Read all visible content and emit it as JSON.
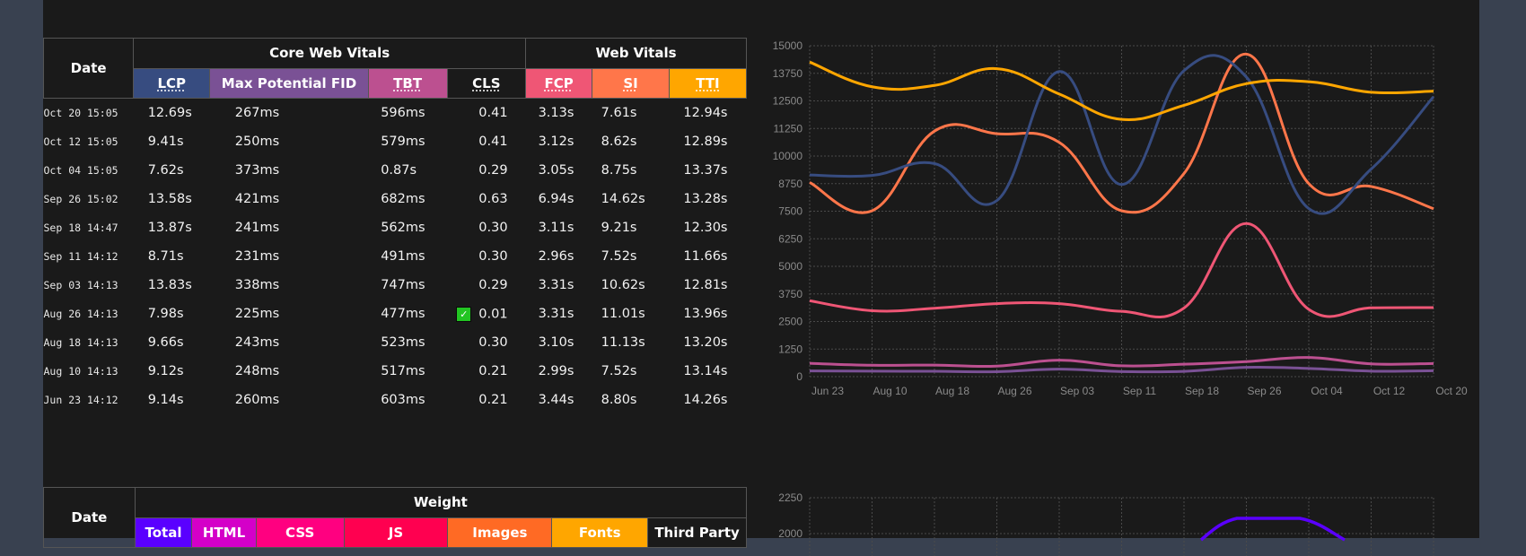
{
  "vitals_table": {
    "date_header": "Date",
    "group_headers": [
      {
        "label": "Core Web Vitals"
      },
      {
        "label": "Web Vitals"
      }
    ],
    "columns": [
      {
        "label": "LCP",
        "color": "#374c80"
      },
      {
        "label": "Max Potential FID",
        "color": "#7a5195"
      },
      {
        "label": "TBT",
        "color": "#bc5090"
      },
      {
        "label": "CLS",
        "color": "#1a1a1a"
      },
      {
        "label": "FCP",
        "color": "#ef5675"
      },
      {
        "label": "SI",
        "color": "#ff764a"
      },
      {
        "label": "TTI",
        "color": "#ffa600"
      }
    ],
    "rows": [
      {
        "date": "Oct 20 15:05",
        "lcp": "12.69s",
        "fid": "267ms",
        "tbt": "596ms",
        "cls": "0.41",
        "cls_good": false,
        "fcp": "3.13s",
        "si": "7.61s",
        "tti": "12.94s"
      },
      {
        "date": "Oct 12 15:05",
        "lcp": "9.41s",
        "fid": "250ms",
        "tbt": "579ms",
        "cls": "0.41",
        "cls_good": false,
        "fcp": "3.12s",
        "si": "8.62s",
        "tti": "12.89s"
      },
      {
        "date": "Oct 04 15:05",
        "lcp": "7.62s",
        "fid": "373ms",
        "tbt": "0.87s",
        "cls": "0.29",
        "cls_good": false,
        "fcp": "3.05s",
        "si": "8.75s",
        "tti": "13.37s"
      },
      {
        "date": "Sep 26 15:02",
        "lcp": "13.58s",
        "fid": "421ms",
        "tbt": "682ms",
        "cls": "0.63",
        "cls_good": false,
        "fcp": "6.94s",
        "si": "14.62s",
        "tti": "13.28s"
      },
      {
        "date": "Sep 18 14:47",
        "lcp": "13.87s",
        "fid": "241ms",
        "tbt": "562ms",
        "cls": "0.30",
        "cls_good": false,
        "fcp": "3.11s",
        "si": "9.21s",
        "tti": "12.30s"
      },
      {
        "date": "Sep 11 14:12",
        "lcp": "8.71s",
        "fid": "231ms",
        "tbt": "491ms",
        "cls": "0.30",
        "cls_good": false,
        "fcp": "2.96s",
        "si": "7.52s",
        "tti": "11.66s"
      },
      {
        "date": "Sep 03 14:13",
        "lcp": "13.83s",
        "fid": "338ms",
        "tbt": "747ms",
        "cls": "0.29",
        "cls_good": false,
        "fcp": "3.31s",
        "si": "10.62s",
        "tti": "12.81s"
      },
      {
        "date": "Aug 26 14:13",
        "lcp": "7.98s",
        "fid": "225ms",
        "tbt": "477ms",
        "cls": "0.01",
        "cls_good": true,
        "fcp": "3.31s",
        "si": "11.01s",
        "tti": "13.96s"
      },
      {
        "date": "Aug 18 14:13",
        "lcp": "9.66s",
        "fid": "243ms",
        "tbt": "523ms",
        "cls": "0.30",
        "cls_good": false,
        "fcp": "3.10s",
        "si": "11.13s",
        "tti": "13.20s"
      },
      {
        "date": "Aug 10 14:13",
        "lcp": "9.12s",
        "fid": "248ms",
        "tbt": "517ms",
        "cls": "0.21",
        "cls_good": false,
        "fcp": "2.99s",
        "si": "7.52s",
        "tti": "13.14s"
      },
      {
        "date": "Jun 23 14:12",
        "lcp": "9.14s",
        "fid": "260ms",
        "tbt": "603ms",
        "cls": "0.21",
        "cls_good": false,
        "fcp": "3.44s",
        "si": "8.80s",
        "tti": "14.26s"
      }
    ]
  },
  "weight_table": {
    "date_header": "Date",
    "group_header": "Weight",
    "columns": [
      {
        "label": "Total",
        "color": "#5a00ff"
      },
      {
        "label": "HTML",
        "color": "#d400c8"
      },
      {
        "label": "CSS",
        "color": "#ff0080"
      },
      {
        "label": "JS",
        "color": "#ff0050"
      },
      {
        "label": "Images",
        "color": "#ff6a24"
      },
      {
        "label": "Fonts",
        "color": "#ffa600"
      },
      {
        "label": "Third Party",
        "color": "#1a1a1a"
      }
    ]
  },
  "chart_data": [
    {
      "type": "line",
      "title": "",
      "xlabel": "",
      "ylabel": "",
      "ylim": [
        0,
        15000
      ],
      "yticks": [
        0,
        1250,
        2500,
        3750,
        5000,
        6250,
        7500,
        8750,
        10000,
        11250,
        12500,
        13750,
        15000
      ],
      "grid": true,
      "categories": [
        "Jun 23",
        "Aug 10",
        "Aug 18",
        "Aug 26",
        "Sep 03",
        "Sep 11",
        "Sep 18",
        "Sep 26",
        "Oct 04",
        "Oct 12",
        "Oct 20"
      ],
      "series": [
        {
          "name": "TTI",
          "color": "#ffa600",
          "values": [
            14260,
            13140,
            13200,
            13960,
            12810,
            11660,
            12300,
            13280,
            13370,
            12890,
            12940
          ]
        },
        {
          "name": "LCP",
          "color": "#374c80",
          "values": [
            9140,
            9120,
            9660,
            7980,
            13830,
            8710,
            13870,
            13580,
            7620,
            9410,
            12690
          ]
        },
        {
          "name": "SI",
          "color": "#ff764a",
          "values": [
            8800,
            7520,
            11130,
            11010,
            10620,
            7520,
            9210,
            14620,
            8750,
            8620,
            7610
          ]
        },
        {
          "name": "FCP",
          "color": "#ef5675",
          "values": [
            3440,
            2990,
            3100,
            3310,
            3310,
            2960,
            3110,
            6940,
            3050,
            3120,
            3130
          ]
        },
        {
          "name": "TBT",
          "color": "#bc5090",
          "values": [
            603,
            517,
            523,
            477,
            747,
            491,
            562,
            682,
            870,
            579,
            596
          ]
        },
        {
          "name": "Max Potential FID",
          "color": "#7a5195",
          "values": [
            260,
            248,
            243,
            225,
            338,
            231,
            241,
            421,
            373,
            250,
            267
          ]
        }
      ]
    },
    {
      "type": "line",
      "title": "",
      "ylim": [
        2000,
        2250
      ],
      "yticks": [
        2000,
        2250
      ],
      "grid": true,
      "series": [
        {
          "name": "Total",
          "color": "#5a00ff",
          "values_visible": "partial"
        }
      ]
    }
  ]
}
